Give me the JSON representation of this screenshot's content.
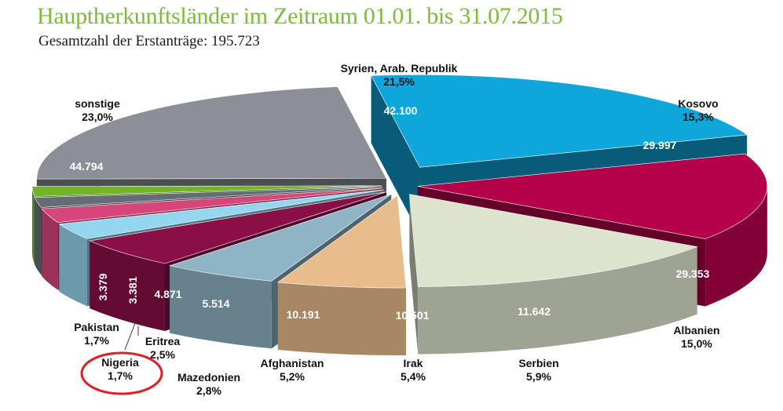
{
  "title": "Hauptherkunftsländer im Zeitraum 01.01. bis 31.07.2015",
  "subtitle": "Gesamtzahl der Erstanträge: 195.723",
  "chart_data": {
    "type": "pie",
    "title": "Hauptherkunftsländer im Zeitraum 01.01. bis 31.07.2015",
    "subtitle": "Gesamtzahl der Erstanträge: 195.723",
    "total": 195723,
    "slices": [
      {
        "name": "Syrien, Arab. Republik",
        "value": 42100,
        "value_label": "42.100",
        "percent_label": "21,5%",
        "color": "#0fa6dc"
      },
      {
        "name": "Kosovo",
        "value": 29997,
        "value_label": "29.997",
        "percent_label": "15,3%",
        "color": "#b5004a"
      },
      {
        "name": "Albanien",
        "value": 29353,
        "value_label": "29.353",
        "percent_label": "15,0%",
        "color": "#dde3cd"
      },
      {
        "name": "Serbien",
        "value": 11642,
        "value_label": "11.642",
        "percent_label": "5,9%",
        "color": "#e8bc8b"
      },
      {
        "name": "Irak",
        "value": 10501,
        "value_label": "10.501",
        "percent_label": "5,4%",
        "color": "#8fb4c5"
      },
      {
        "name": "Afghanistan",
        "value": 10191,
        "value_label": "10.191",
        "percent_label": "5,2%",
        "color": "#8a0f47"
      },
      {
        "name": "Mazedonien",
        "value": 5514,
        "value_label": "5.514",
        "percent_label": "2,8%",
        "color": "#94d6ef"
      },
      {
        "name": "Eritrea",
        "value": 4871,
        "value_label": "4.871",
        "percent_label": "2,5%",
        "color": "#d7467b"
      },
      {
        "name": "Nigeria",
        "value": 3381,
        "value_label": "3.381",
        "percent_label": "1,7%",
        "color": "#656c75"
      },
      {
        "name": "Pakistan",
        "value": 3379,
        "value_label": "3.379",
        "percent_label": "1,7%",
        "color": "#71b427"
      },
      {
        "name": "sonstige",
        "value": 44794,
        "value_label": "44.794",
        "percent_label": "23,0%",
        "color": "#8c8e98"
      }
    ],
    "highlight": {
      "slice": "Nigeria",
      "shape": "ellipse",
      "color": "#e01e25"
    },
    "exploded": true,
    "3d": true,
    "legend": "none"
  }
}
